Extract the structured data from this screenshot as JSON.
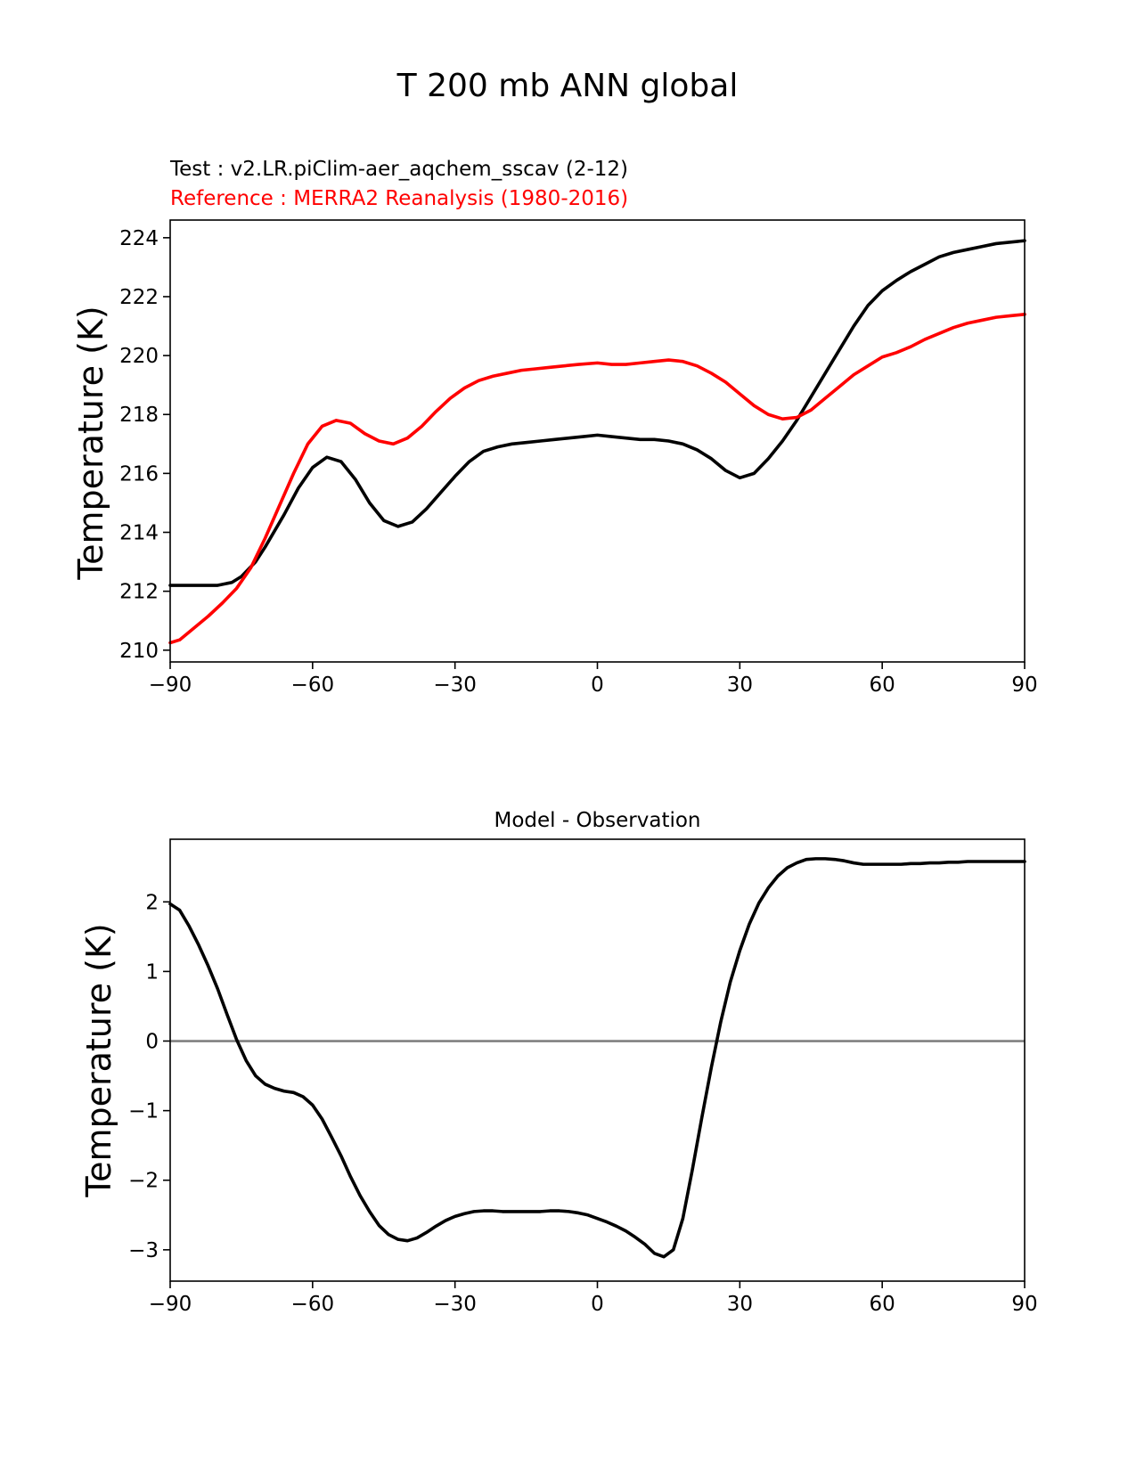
{
  "figure": {
    "title": "T 200 mb ANN global"
  },
  "chart_data": [
    {
      "type": "line",
      "test_label": "Test : v2.LR.piClim-aer_aqchem_sscav (2-12)",
      "reference_label": "Reference : MERRA2 Reanalysis (1980-2016)",
      "ylabel": "Temperature (K)",
      "xlim": [
        -90,
        90
      ],
      "ylim": [
        209.6,
        224.6
      ],
      "xticks": [
        -90,
        -60,
        -30,
        0,
        30,
        60,
        90
      ],
      "xtick_labels": [
        "−90",
        "−60",
        "−30",
        "0",
        "30",
        "60",
        "90"
      ],
      "yticks": [
        210,
        212,
        214,
        216,
        218,
        220,
        222,
        224
      ],
      "ytick_labels": [
        "210",
        "212",
        "214",
        "216",
        "218",
        "220",
        "222",
        "224"
      ],
      "grid": false,
      "series": [
        {
          "role": "test",
          "color": "#000000",
          "x": [
            -90,
            -85,
            -80,
            -77,
            -75,
            -72,
            -70,
            -66,
            -63,
            -60,
            -57,
            -54,
            -51,
            -48,
            -45,
            -42,
            -39,
            -36,
            -33,
            -30,
            -27,
            -24,
            -21,
            -18,
            -15,
            -12,
            -9,
            -6,
            -3,
            0,
            3,
            6,
            9,
            12,
            15,
            18,
            21,
            24,
            27,
            30,
            33,
            36,
            39,
            42,
            45,
            48,
            51,
            54,
            57,
            60,
            63,
            66,
            69,
            72,
            75,
            78,
            81,
            84,
            87,
            90
          ],
          "y": [
            212.2,
            212.2,
            212.2,
            212.3,
            212.5,
            213.0,
            213.5,
            214.6,
            215.5,
            216.2,
            216.55,
            216.4,
            215.8,
            215.0,
            214.4,
            214.2,
            214.35,
            214.8,
            215.35,
            215.9,
            216.4,
            216.75,
            216.9,
            217.0,
            217.05,
            217.1,
            217.15,
            217.2,
            217.25,
            217.3,
            217.25,
            217.2,
            217.15,
            217.15,
            217.1,
            217.0,
            216.8,
            216.5,
            216.1,
            215.85,
            216.0,
            216.5,
            217.1,
            217.8,
            218.6,
            219.4,
            220.2,
            221.0,
            221.7,
            222.2,
            222.55,
            222.85,
            223.1,
            223.35,
            223.5,
            223.6,
            223.7,
            223.8,
            223.85,
            223.9
          ]
        },
        {
          "role": "reference",
          "color": "#ff0000",
          "x": [
            -90,
            -88,
            -85,
            -82,
            -79,
            -76,
            -73,
            -70,
            -67,
            -64,
            -61,
            -58,
            -55,
            -52,
            -49,
            -46,
            -43,
            -40,
            -37,
            -34,
            -31,
            -28,
            -25,
            -22,
            -19,
            -16,
            -13,
            -10,
            -7,
            -4,
            0,
            3,
            6,
            9,
            12,
            15,
            18,
            21,
            24,
            27,
            30,
            33,
            36,
            39,
            42,
            45,
            48,
            51,
            54,
            57,
            60,
            63,
            66,
            69,
            72,
            75,
            78,
            81,
            84,
            87,
            90
          ],
          "y": [
            210.25,
            210.35,
            210.75,
            211.15,
            211.6,
            212.1,
            212.8,
            213.8,
            214.9,
            216.0,
            217.0,
            217.6,
            217.8,
            217.7,
            217.35,
            217.1,
            217.0,
            217.2,
            217.6,
            218.1,
            218.55,
            218.9,
            219.15,
            219.3,
            219.4,
            219.5,
            219.55,
            219.6,
            219.65,
            219.7,
            219.75,
            219.7,
            219.7,
            219.75,
            219.8,
            219.85,
            219.8,
            219.65,
            219.4,
            219.1,
            218.7,
            218.3,
            218.0,
            217.85,
            217.9,
            218.15,
            218.55,
            218.95,
            219.35,
            219.65,
            219.95,
            220.1,
            220.3,
            220.55,
            220.75,
            220.95,
            221.1,
            221.2,
            221.3,
            221.35,
            221.4
          ]
        }
      ]
    },
    {
      "type": "line",
      "title": "Model - Observation",
      "ylabel": "Temperature (K)",
      "xlim": [
        -90,
        90
      ],
      "ylim": [
        -3.45,
        2.9
      ],
      "xticks": [
        -90,
        -60,
        -30,
        0,
        30,
        60,
        90
      ],
      "xtick_labels": [
        "−90",
        "−60",
        "−30",
        "0",
        "30",
        "60",
        "90"
      ],
      "yticks": [
        -3,
        -2,
        -1,
        0,
        1,
        2
      ],
      "ytick_labels": [
        "−3",
        "−2",
        "−1",
        "0",
        "1",
        "2"
      ],
      "grid": false,
      "zero_line_color": "#808080",
      "series": [
        {
          "role": "difference",
          "color": "#000000",
          "x": [
            -90,
            -88,
            -86,
            -84,
            -82,
            -80,
            -78,
            -76,
            -74,
            -72,
            -70,
            -68,
            -66,
            -64,
            -62,
            -60,
            -58,
            -56,
            -54,
            -52,
            -50,
            -48,
            -46,
            -44,
            -42,
            -40,
            -38,
            -36,
            -34,
            -32,
            -30,
            -28,
            -26,
            -24,
            -22,
            -20,
            -18,
            -16,
            -14,
            -12,
            -10,
            -8,
            -6,
            -4,
            -2,
            0,
            2,
            4,
            6,
            8,
            10,
            12,
            14,
            16,
            18,
            20,
            22,
            24,
            26,
            28,
            30,
            32,
            34,
            36,
            38,
            40,
            42,
            44,
            46,
            48,
            50,
            52,
            54,
            56,
            58,
            60,
            62,
            64,
            66,
            68,
            70,
            72,
            74,
            76,
            78,
            80,
            82,
            84,
            86,
            88,
            90
          ],
          "y": [
            1.97,
            1.88,
            1.65,
            1.38,
            1.08,
            0.75,
            0.38,
            0.02,
            -0.28,
            -0.5,
            -0.62,
            -0.68,
            -0.72,
            -0.74,
            -0.8,
            -0.92,
            -1.12,
            -1.38,
            -1.65,
            -1.95,
            -2.22,
            -2.45,
            -2.65,
            -2.78,
            -2.85,
            -2.87,
            -2.83,
            -2.75,
            -2.66,
            -2.58,
            -2.52,
            -2.48,
            -2.45,
            -2.44,
            -2.44,
            -2.45,
            -2.45,
            -2.45,
            -2.45,
            -2.45,
            -2.44,
            -2.44,
            -2.45,
            -2.47,
            -2.5,
            -2.55,
            -2.6,
            -2.66,
            -2.73,
            -2.82,
            -2.92,
            -3.05,
            -3.1,
            -3.0,
            -2.55,
            -1.85,
            -1.1,
            -0.38,
            0.28,
            0.85,
            1.3,
            1.68,
            1.98,
            2.2,
            2.37,
            2.49,
            2.56,
            2.61,
            2.62,
            2.62,
            2.61,
            2.59,
            2.56,
            2.54,
            2.54,
            2.54,
            2.54,
            2.54,
            2.55,
            2.55,
            2.56,
            2.56,
            2.57,
            2.57,
            2.58,
            2.58,
            2.58,
            2.58,
            2.58,
            2.58,
            2.58
          ]
        }
      ]
    }
  ]
}
